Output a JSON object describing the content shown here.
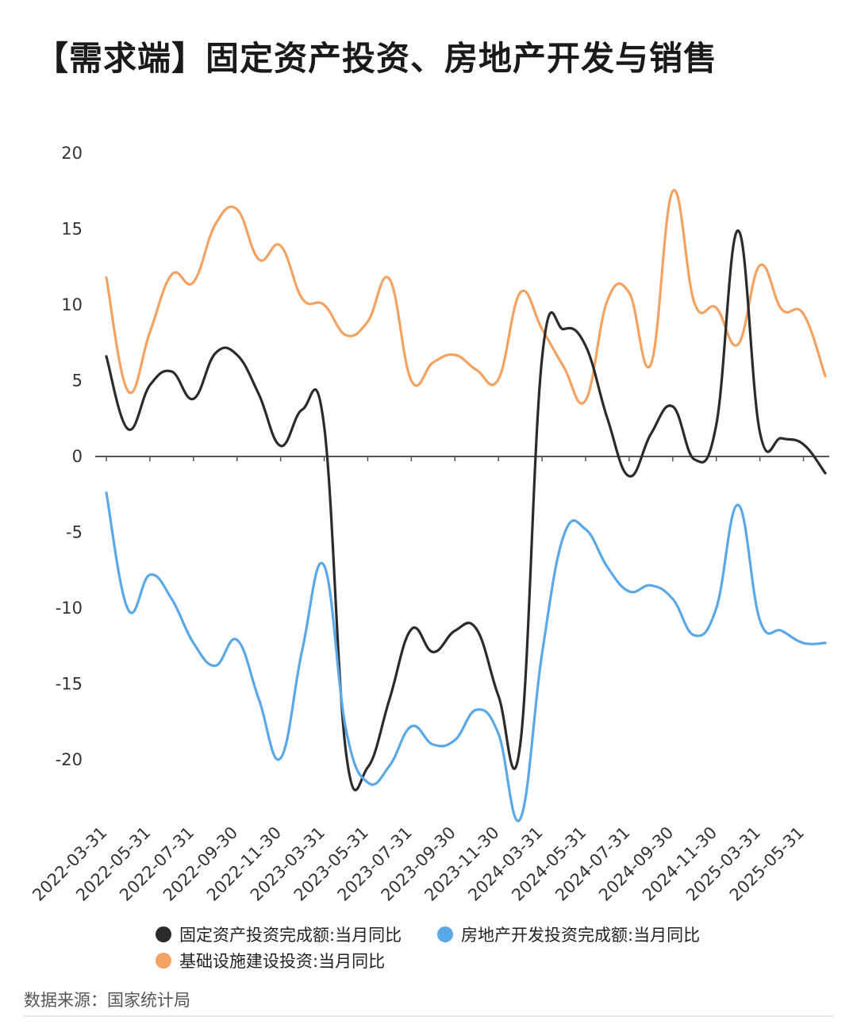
{
  "header": {
    "title": "【需求端】固定资产投资、房地产开发与销售"
  },
  "footer": {
    "source": "数据来源：国家统计局"
  },
  "chart_data": {
    "type": "line",
    "title": "【需求端】固定资产投资、房地产开发与销售",
    "xlabel": "",
    "ylabel": "",
    "ylim": [
      -25,
      20
    ],
    "yticks": [
      20,
      15,
      10,
      5,
      0,
      -5,
      -10,
      -15,
      -20
    ],
    "grid": false,
    "legend_position": "bottom",
    "x": [
      "2022-03-31",
      "2022-04-30",
      "2022-05-31",
      "2022-06-30",
      "2022-07-31",
      "2022-08-31",
      "2022-09-30",
      "2022-10-31",
      "2022-11-30",
      "2022-12-31",
      "2023-03-31",
      "2023-04-30",
      "2023-05-31",
      "2023-06-30",
      "2023-07-31",
      "2023-08-31",
      "2023-09-30",
      "2023-10-31",
      "2023-11-30",
      "2023-12-31",
      "2024-03-31",
      "2024-04-30",
      "2024-05-31",
      "2024-06-30",
      "2024-07-31",
      "2024-08-31",
      "2024-09-30",
      "2024-10-31",
      "2024-11-30",
      "2024-12-31",
      "2025-03-31",
      "2025-04-30",
      "2025-05-31",
      "2025-06-30"
    ],
    "xtick_labels": [
      "2022-03-31",
      "2022-05-31",
      "2022-07-31",
      "2022-09-30",
      "2022-11-30",
      "2023-03-31",
      "2023-05-31",
      "2023-07-31",
      "2023-09-30",
      "2023-11-30",
      "2024-03-31",
      "2024-05-31",
      "2024-07-31",
      "2024-09-30",
      "2024-11-30",
      "2025-03-31",
      "2025-05-31"
    ],
    "series": [
      {
        "name": "固定资产投资完成额:当月同比",
        "color": "#2b2b2b",
        "values": [
          6.6,
          1.8,
          4.7,
          5.6,
          3.8,
          6.8,
          6.7,
          4.1,
          0.7,
          3.1,
          2.0,
          -19.5,
          -20.5,
          -16.0,
          -11.4,
          -12.9,
          -11.5,
          -11.4,
          -15.8,
          -19.0,
          6.5,
          8.4,
          7.3,
          2.5,
          -1.3,
          1.5,
          3.3,
          -0.2,
          2.1,
          14.9,
          1.6,
          1.2,
          0.8,
          -1.1
        ]
      },
      {
        "name": "房地产开发投资完成额:当月同比",
        "color": "#5aa9e6",
        "values": [
          -2.4,
          -10.1,
          -7.8,
          -9.4,
          -12.3,
          -13.8,
          -12.1,
          -16.0,
          -19.9,
          -12.7,
          -7.2,
          -18.0,
          -21.5,
          -20.4,
          -17.8,
          -19.0,
          -18.7,
          -16.7,
          -18.3,
          -23.9,
          -13.0,
          -5.2,
          -4.8,
          -7.3,
          -8.9,
          -8.5,
          -9.4,
          -11.8,
          -10.0,
          -3.2,
          -10.8,
          -11.5,
          -12.3,
          -12.3
        ]
      },
      {
        "name": "基础设施建设投资:当月同比",
        "color": "#f4a261",
        "values": [
          11.8,
          4.3,
          8.2,
          12.0,
          11.5,
          15.3,
          16.3,
          13.0,
          13.9,
          10.4,
          10.0,
          8.0,
          8.9,
          11.7,
          5.0,
          6.2,
          6.7,
          5.7,
          5.1,
          10.8,
          8.4,
          5.9,
          3.7,
          10.3,
          10.8,
          6.1,
          17.5,
          10.1,
          9.8,
          7.4,
          12.6,
          9.7,
          9.4,
          5.3
        ]
      }
    ]
  }
}
